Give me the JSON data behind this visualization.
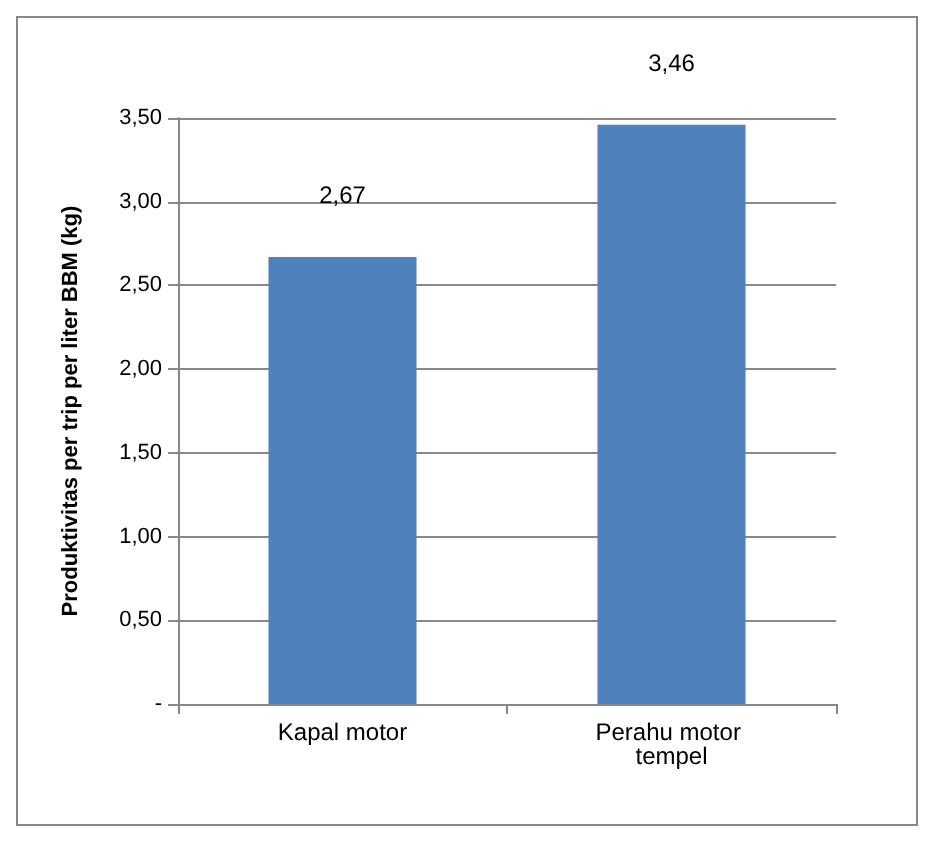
{
  "chart_data": {
    "type": "bar",
    "ylabel": "Produktivitas per trip per liter BBM (kg)",
    "categories": [
      "Kapal motor",
      "Perahu motor tempel"
    ],
    "values": [
      2.67,
      3.46
    ],
    "value_labels": [
      "2,67",
      "3,46"
    ],
    "color": "#4f81bd",
    "ylim": [
      0,
      3.5
    ],
    "yticks": [
      {
        "value": 0,
        "label": "-"
      },
      {
        "value": 0.5,
        "label": "0,50"
      },
      {
        "value": 1,
        "label": "1,00"
      },
      {
        "value": 1.5,
        "label": "1,50"
      },
      {
        "value": 2,
        "label": "2,00"
      },
      {
        "value": 2.5,
        "label": "2,50"
      },
      {
        "value": 3,
        "label": "3,00"
      },
      {
        "value": 3.5,
        "label": "3,50"
      }
    ],
    "grid": "y"
  }
}
